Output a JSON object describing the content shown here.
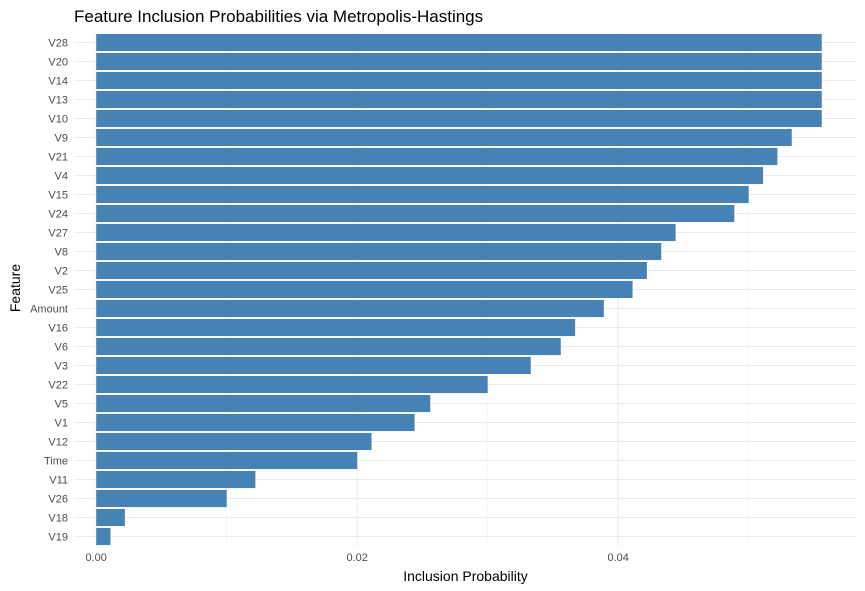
{
  "chart_data": {
    "type": "bar",
    "orientation": "horizontal",
    "title": "Feature Inclusion Probabilities via Metropolis-Hastings",
    "xlabel": "Inclusion Probability",
    "ylabel": "Feature",
    "xlim": [
      -0.0017,
      0.0583
    ],
    "xticks": [
      0.0,
      0.02,
      0.04
    ],
    "xtick_labels": [
      "0.00",
      "0.02",
      "0.04"
    ],
    "grid": true,
    "bar_color": "#4682B4",
    "categories": [
      "V28",
      "V20",
      "V14",
      "V13",
      "V10",
      "V9",
      "V21",
      "V4",
      "V15",
      "V24",
      "V27",
      "V8",
      "V2",
      "V25",
      "Amount",
      "V16",
      "V6",
      "V3",
      "V22",
      "V5",
      "V1",
      "V12",
      "Time",
      "V11",
      "V26",
      "V18",
      "V19"
    ],
    "values": [
      0.0556,
      0.0556,
      0.0556,
      0.0556,
      0.0556,
      0.0533,
      0.0522,
      0.0511,
      0.05,
      0.0489,
      0.0444,
      0.0433,
      0.0422,
      0.0411,
      0.0389,
      0.0367,
      0.0356,
      0.0333,
      0.03,
      0.0256,
      0.0244,
      0.0211,
      0.02,
      0.0122,
      0.01,
      0.0022,
      0.0011
    ]
  }
}
